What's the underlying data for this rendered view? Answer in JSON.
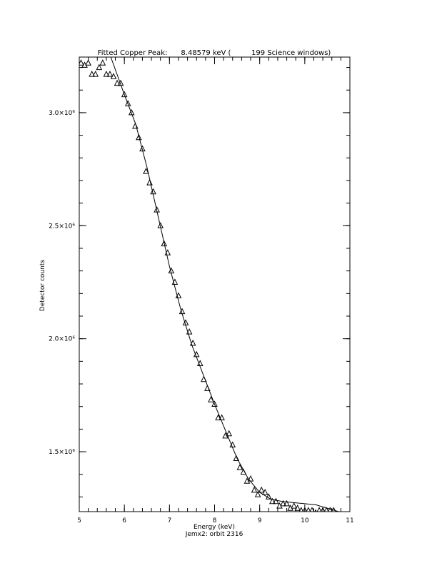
{
  "chart_data": {
    "type": "scatter",
    "title": "Fitted Copper Peak:      8.48579 keV (         199 Science windows)",
    "x_label": "Energy (keV)",
    "subtitle": "Jemx2: orbit 2316",
    "y_label": "Detector counts",
    "xlim": [
      5,
      11
    ],
    "ylim": [
      1235000,
      3246000
    ],
    "xticks": [
      5,
      6,
      7,
      8,
      9,
      10,
      11
    ],
    "yticks": [
      {
        "value": 1500000,
        "label": "1.5×10⁶"
      },
      {
        "value": 2000000,
        "label": "2.0×10⁶"
      },
      {
        "value": 2500000,
        "label": "2.5×10⁶"
      },
      {
        "value": 3000000,
        "label": "3.0×10⁶"
      }
    ],
    "xminor_step": 0.2,
    "yminor_step": 100000,
    "grid": false,
    "series": [
      {
        "type": "scatter",
        "marker": "triangle",
        "color": "#000000",
        "x": [
          5.04,
          5.12,
          5.2,
          5.28,
          5.36,
          5.44,
          5.52,
          5.6,
          5.68,
          5.76,
          5.84,
          5.92,
          6.0,
          6.08,
          6.16,
          6.24,
          6.32,
          6.4,
          6.48,
          6.56,
          6.64,
          6.72,
          6.8,
          6.88,
          6.96,
          7.04,
          7.12,
          7.2,
          7.28,
          7.36,
          7.44,
          7.52,
          7.6,
          7.68,
          7.76,
          7.84,
          7.92,
          8.0,
          8.08,
          8.16,
          8.24,
          8.32,
          8.4,
          8.48,
          8.56,
          8.64,
          8.72,
          8.8,
          8.88,
          8.96,
          9.04,
          9.12,
          9.2,
          9.28,
          9.36,
          9.44,
          9.52,
          9.6,
          9.68,
          9.76,
          9.84,
          9.92,
          10.0,
          10.08,
          10.16,
          10.24,
          10.32,
          10.4,
          10.48,
          10.56,
          10.64
        ],
        "values": [
          3220000,
          3210000,
          3220000,
          3170000,
          3170000,
          3200000,
          3220000,
          3170000,
          3170000,
          3160000,
          3130000,
          3130000,
          3080000,
          3040000,
          3000000,
          2940000,
          2890000,
          2840000,
          2740000,
          2690000,
          2650000,
          2570000,
          2500000,
          2420000,
          2380000,
          2300000,
          2250000,
          2190000,
          2120000,
          2070000,
          2030000,
          1980000,
          1930000,
          1890000,
          1820000,
          1780000,
          1730000,
          1710000,
          1650000,
          1650000,
          1570000,
          1580000,
          1530000,
          1470000,
          1430000,
          1410000,
          1370000,
          1380000,
          1330000,
          1310000,
          1330000,
          1320000,
          1300000,
          1280000,
          1280000,
          1260000,
          1270000,
          1270000,
          1250000,
          1260000,
          1250000,
          1240000,
          1240000,
          1240000,
          1240000,
          1230000,
          1240000,
          1240000,
          1240000,
          1240000,
          1240000
        ]
      },
      {
        "type": "line",
        "color": "#000000",
        "x": [
          5.7,
          6.0,
          6.25,
          6.5,
          6.75,
          7.0,
          7.25,
          7.5,
          7.75,
          8.0,
          8.25,
          8.5,
          8.75,
          9.0,
          9.25,
          9.5,
          9.75,
          10.0,
          10.25,
          10.5,
          10.75
        ],
        "values": [
          3246000,
          3080000,
          2950000,
          2760000,
          2540000,
          2320000,
          2130000,
          1970000,
          1840000,
          1710000,
          1590000,
          1470000,
          1380000,
          1320000,
          1290000,
          1280000,
          1275000,
          1270000,
          1265000,
          1250000,
          1235000
        ]
      }
    ]
  }
}
